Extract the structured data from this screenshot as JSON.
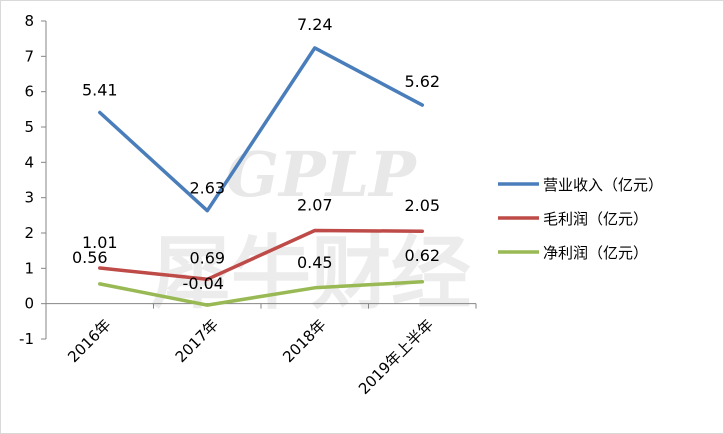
{
  "chart_data": {
    "type": "line",
    "categories": [
      "2016年",
      "2017年",
      "2018年",
      "2019年上半年"
    ],
    "ylim": [
      -1,
      8
    ],
    "yticks": [
      -1,
      0,
      1,
      2,
      3,
      4,
      5,
      6,
      7,
      8
    ],
    "grid": "horizontal-none",
    "legend_position": "right",
    "series": [
      {
        "name": "营业收入（亿元）",
        "values": [
          5.41,
          2.63,
          7.24,
          5.62
        ],
        "labels": [
          "5.41",
          "2.63",
          "7.24",
          "5.62"
        ],
        "color": "#4a7ebb"
      },
      {
        "name": "毛利润（亿元）",
        "values": [
          1.01,
          0.69,
          2.07,
          2.05
        ],
        "labels": [
          "1.01",
          "0.69",
          "2.07",
          "2.05"
        ],
        "color": "#be4b48"
      },
      {
        "name": "净利润（亿元）",
        "values": [
          0.56,
          -0.04,
          0.45,
          0.62
        ],
        "labels": [
          "0.56",
          "-0.04",
          "0.45",
          "0.62"
        ],
        "color": "#98b954"
      }
    ]
  },
  "watermark": {
    "latin": "GPLP",
    "cjk": "犀牛财经"
  }
}
